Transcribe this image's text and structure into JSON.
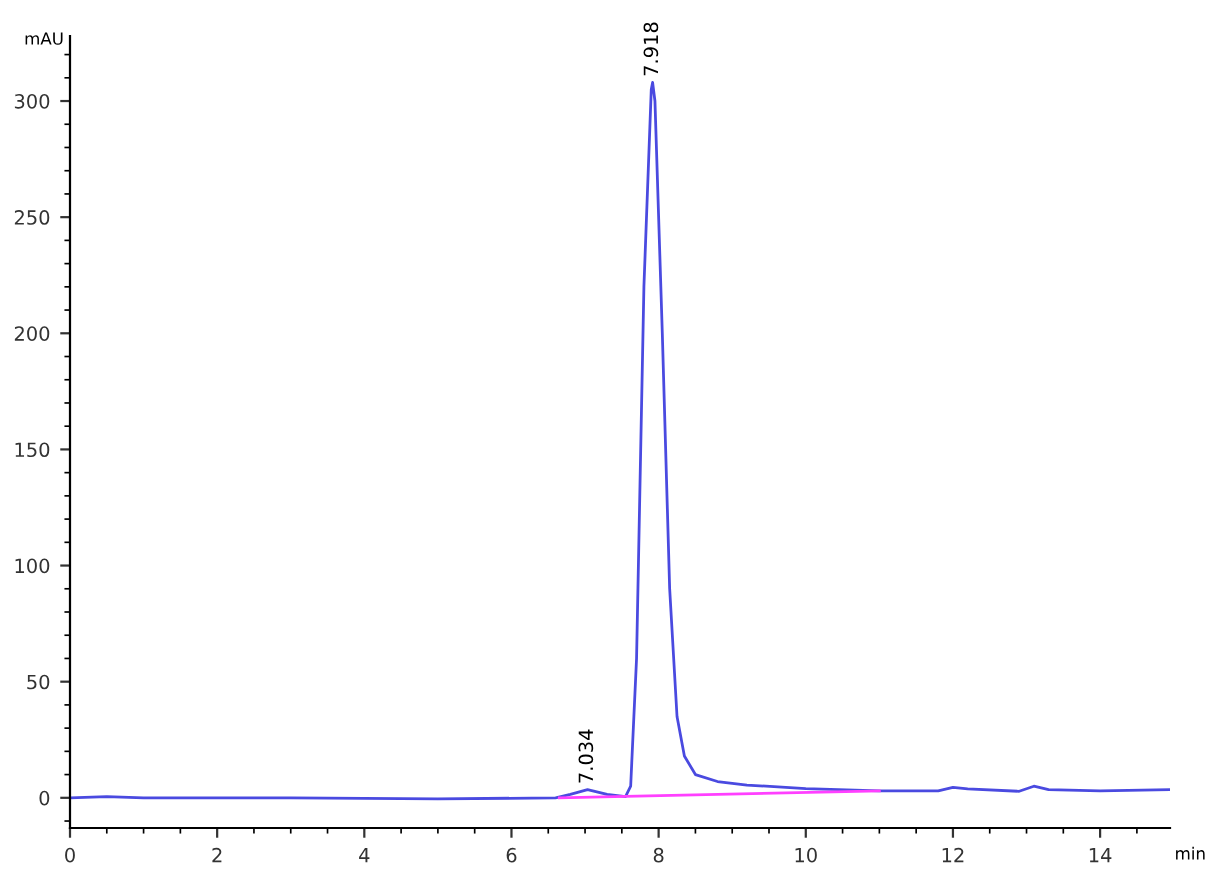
{
  "chart_data": {
    "type": "line",
    "xlabel": "min",
    "ylabel": "mAU",
    "xlim": [
      0,
      14.95
    ],
    "ylim": [
      -13,
      328
    ],
    "xticks": [
      0,
      2,
      4,
      6,
      8,
      10,
      12,
      14
    ],
    "yticks": [
      0,
      50,
      100,
      150,
      200,
      250,
      300
    ],
    "grid": false,
    "legend": false,
    "marker": "none",
    "line_style": "solid",
    "series": [
      {
        "color": "#4a4ae0",
        "x": [
          0,
          0.5,
          1,
          3,
          5,
          6.6,
          6.8,
          7.034,
          7.3,
          7.55,
          7.62,
          7.7,
          7.8,
          7.9,
          7.918,
          7.95,
          8.05,
          8.15,
          8.25,
          8.35,
          8.5,
          8.8,
          9.2,
          10,
          11,
          11.8,
          12,
          12.2,
          12.9,
          13.1,
          13.3,
          14,
          14.95
        ],
        "values": [
          0,
          0.5,
          0,
          0,
          -0.5,
          0,
          1.5,
          3.5,
          1.5,
          0.5,
          5,
          60,
          220,
          305,
          308,
          300,
          200,
          90,
          35,
          18,
          10,
          7,
          5.5,
          4,
          3,
          3,
          4.5,
          3.8,
          2.8,
          5,
          3.5,
          3,
          3.5
        ]
      },
      {
        "color": "#ff40ff",
        "x": [
          6.65,
          7.55,
          11
        ],
        "values": [
          0,
          0.6,
          3
        ]
      }
    ],
    "annotations": [
      {
        "text": "7.918",
        "x": 7.918,
        "y": 308
      },
      {
        "text": "7.034",
        "x": 7.034,
        "y": 3.5
      }
    ]
  }
}
